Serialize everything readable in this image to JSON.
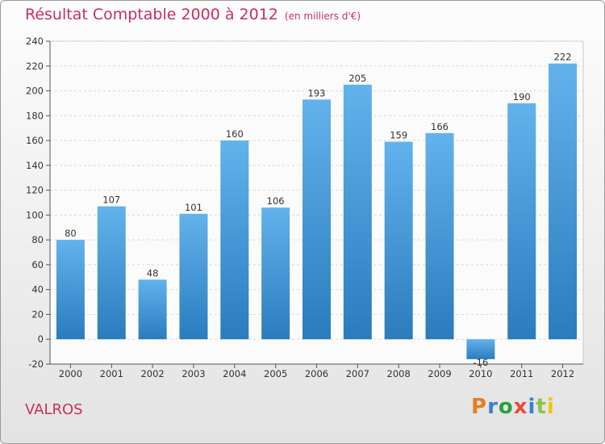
{
  "header": {
    "title": "Résultat Comptable 2000 à 2012",
    "subtitle": "(en milliers d'€)"
  },
  "footer": {
    "commune": "VALROS",
    "logo_text": "Proxiti",
    "logo_colors": [
      "#e67e22",
      "#3b7fd3",
      "#2e9e3a",
      "#e74c3c",
      "#3b7fd3",
      "#8bc34a",
      "#f1c40f"
    ]
  },
  "colors": {
    "title": "#c8305a",
    "bar_light": "#62b2ec",
    "bar_dark": "#2a7cbd",
    "grid": "#d9d9d9",
    "axis_text": "#333333"
  },
  "chart_data": {
    "type": "bar",
    "categories": [
      "2000",
      "2001",
      "2002",
      "2003",
      "2004",
      "2005",
      "2006",
      "2007",
      "2008",
      "2009",
      "2010",
      "2011",
      "2012"
    ],
    "values": [
      80,
      107,
      48,
      101,
      160,
      106,
      193,
      205,
      159,
      166,
      -16,
      190,
      222
    ],
    "data_labels": [
      "80",
      "107",
      "48",
      "101",
      "160",
      "106",
      "193",
      "205",
      "159",
      "166",
      "-16",
      "190",
      "222"
    ],
    "y_ticks": [
      "-20",
      "0",
      "20",
      "40",
      "60",
      "80",
      "100",
      "120",
      "140",
      "160",
      "180",
      "200",
      "220",
      "240"
    ],
    "ylim": [
      -20,
      240
    ],
    "grid": true,
    "legend": "none"
  }
}
